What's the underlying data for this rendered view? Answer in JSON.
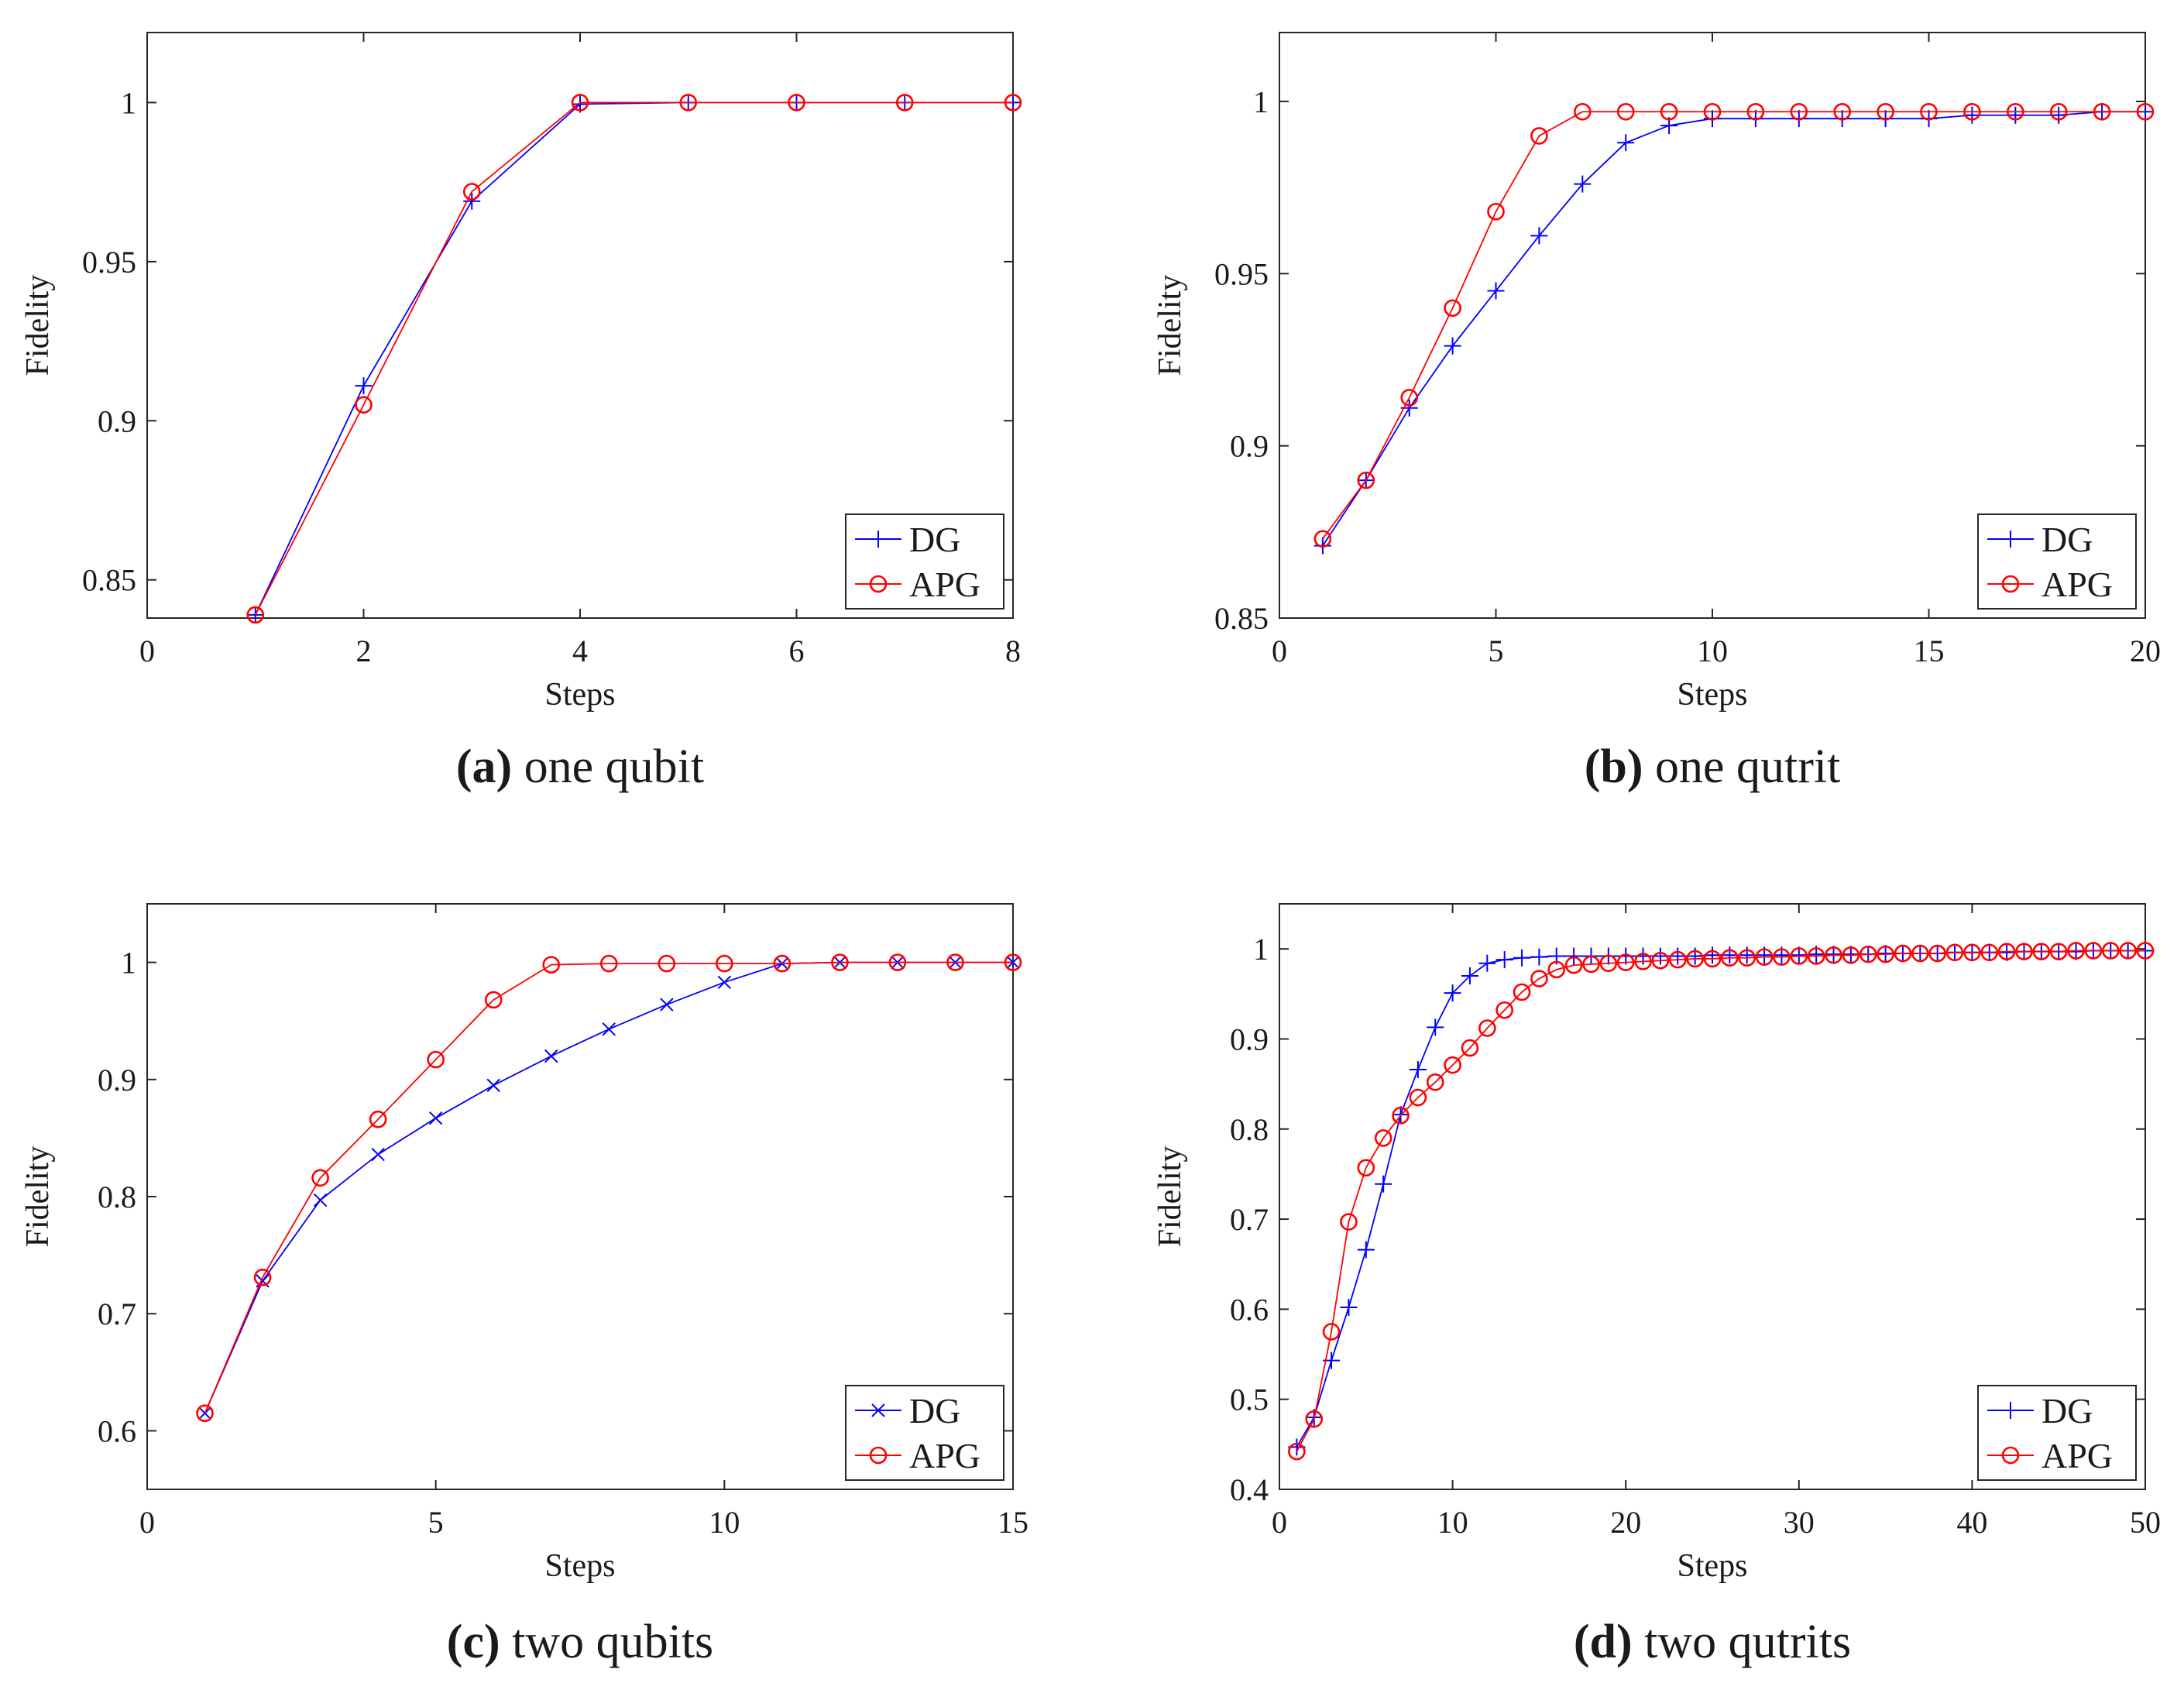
{
  "figure": {
    "colors": {
      "dg": "#0000ff",
      "apg": "#ff0000",
      "axis": "#262626"
    }
  },
  "chart_data": [
    {
      "id": "a",
      "type": "line",
      "caption_letter": "(a)",
      "caption_text": "one qubit",
      "xlabel": "Steps",
      "ylabel": "Fidelity",
      "xlim": [
        0,
        8
      ],
      "ylim": [
        0.838,
        1.022
      ],
      "xticks": [
        0,
        2,
        4,
        6,
        8
      ],
      "xtick_labels": [
        "0",
        "2",
        "4",
        "6",
        "8"
      ],
      "yticks": [
        0.85,
        0.9,
        0.95,
        1
      ],
      "ytick_labels": [
        "0.85",
        "0.9",
        "0.95",
        "1"
      ],
      "legend_position": "bottom-right",
      "series": [
        {
          "name": "DG",
          "marker": "plus",
          "color": "#0000ff",
          "x": [
            1,
            2,
            3,
            4,
            5,
            6,
            7,
            8
          ],
          "y": [
            0.839,
            0.911,
            0.969,
            0.9995,
            1.0,
            1.0,
            1.0,
            1.0
          ]
        },
        {
          "name": "APG",
          "marker": "circle",
          "color": "#ff0000",
          "x": [
            1,
            2,
            3,
            4,
            5,
            6,
            7,
            8
          ],
          "y": [
            0.839,
            0.905,
            0.972,
            1.0,
            1.0,
            1.0,
            1.0,
            1.0
          ]
        }
      ]
    },
    {
      "id": "b",
      "type": "line",
      "caption_letter": "(b)",
      "caption_text": "one qutrit",
      "xlabel": "Steps",
      "ylabel": "Fidelity",
      "xlim": [
        0,
        20
      ],
      "ylim": [
        0.85,
        1.02
      ],
      "xticks": [
        0,
        5,
        10,
        15,
        20
      ],
      "xtick_labels": [
        "0",
        "5",
        "10",
        "15",
        "20"
      ],
      "yticks": [
        0.85,
        0.9,
        0.95,
        1
      ],
      "ytick_labels": [
        "0.85",
        "0.9",
        "0.95",
        "1"
      ],
      "legend_position": "bottom-right",
      "series": [
        {
          "name": "DG",
          "marker": "plus",
          "color": "#0000ff",
          "x": [
            1,
            2,
            3,
            4,
            5,
            6,
            7,
            8,
            9,
            10,
            11,
            12,
            13,
            14,
            15,
            16,
            17,
            18,
            19,
            20
          ],
          "y": [
            0.871,
            0.89,
            0.911,
            0.929,
            0.945,
            0.961,
            0.976,
            0.988,
            0.993,
            0.995,
            0.995,
            0.995,
            0.995,
            0.995,
            0.995,
            0.996,
            0.996,
            0.996,
            0.997,
            0.997
          ]
        },
        {
          "name": "APG",
          "marker": "circle",
          "color": "#ff0000",
          "x": [
            1,
            2,
            3,
            4,
            5,
            6,
            7,
            8,
            9,
            10,
            11,
            12,
            13,
            14,
            15,
            16,
            17,
            18,
            19,
            20
          ],
          "y": [
            0.873,
            0.89,
            0.914,
            0.94,
            0.968,
            0.99,
            0.997,
            0.997,
            0.997,
            0.997,
            0.997,
            0.997,
            0.997,
            0.997,
            0.997,
            0.997,
            0.997,
            0.997,
            0.997,
            0.997
          ]
        }
      ]
    },
    {
      "id": "c",
      "type": "line",
      "caption_letter": "(c)",
      "caption_text": "two qubits",
      "xlabel": "Steps",
      "ylabel": "Fidelity",
      "xlim": [
        0,
        15
      ],
      "ylim": [
        0.55,
        1.05
      ],
      "xticks": [
        0,
        5,
        10,
        15
      ],
      "xtick_labels": [
        "0",
        "5",
        "10",
        "15"
      ],
      "yticks": [
        0.6,
        0.7,
        0.8,
        0.9,
        1
      ],
      "ytick_labels": [
        "0.6",
        "0.7",
        "0.8",
        "0.9",
        "1"
      ],
      "legend_position": "bottom-right",
      "series": [
        {
          "name": "DG",
          "marker": "x",
          "color": "#0000ff",
          "x": [
            1,
            2,
            3,
            4,
            5,
            6,
            7,
            8,
            9,
            10,
            11,
            12,
            13,
            14,
            15
          ],
          "y": [
            0.615,
            0.728,
            0.797,
            0.836,
            0.867,
            0.895,
            0.92,
            0.943,
            0.964,
            0.983,
            0.999,
            1.0,
            1.0,
            1.0,
            1.0
          ]
        },
        {
          "name": "APG",
          "marker": "circle",
          "color": "#ff0000",
          "x": [
            1,
            2,
            3,
            4,
            5,
            6,
            7,
            8,
            9,
            10,
            11,
            12,
            13,
            14,
            15
          ],
          "y": [
            0.615,
            0.731,
            0.816,
            0.866,
            0.917,
            0.968,
            0.998,
            0.999,
            0.999,
            0.999,
            0.999,
            1.0,
            1.0,
            1.0,
            1.0
          ]
        }
      ]
    },
    {
      "id": "d",
      "type": "line",
      "caption_letter": "(d)",
      "caption_text": "two qutrits",
      "xlabel": "Steps",
      "ylabel": "Fidelity",
      "xlim": [
        0,
        50
      ],
      "ylim": [
        0.4,
        1.05
      ],
      "xticks": [
        0,
        10,
        20,
        30,
        40,
        50
      ],
      "xtick_labels": [
        "0",
        "10",
        "20",
        "30",
        "40",
        "50"
      ],
      "yticks": [
        0.4,
        0.5,
        0.6,
        0.7,
        0.8,
        0.9,
        1
      ],
      "ytick_labels": [
        "0.4",
        "0.5",
        "0.6",
        "0.7",
        "0.8",
        "0.9",
        "1"
      ],
      "legend_position": "bottom-right",
      "series": [
        {
          "name": "DG",
          "marker": "plus",
          "color": "#0000ff",
          "x": [
            1,
            2,
            3,
            4,
            5,
            6,
            7,
            8,
            9,
            10,
            11,
            12,
            13,
            14,
            15,
            16,
            17,
            18,
            19,
            20,
            21,
            22,
            23,
            24,
            25,
            26,
            27,
            28,
            29,
            30,
            31,
            32,
            33,
            34,
            35,
            36,
            37,
            38,
            39,
            40,
            41,
            42,
            43,
            44,
            45,
            46,
            47,
            48,
            49,
            50
          ],
          "y": [
            0.447,
            0.48,
            0.543,
            0.602,
            0.666,
            0.739,
            0.816,
            0.866,
            0.913,
            0.951,
            0.97,
            0.984,
            0.988,
            0.99,
            0.991,
            0.992,
            0.992,
            0.992,
            0.992,
            0.992,
            0.992,
            0.992,
            0.992,
            0.992,
            0.993,
            0.993,
            0.993,
            0.993,
            0.993,
            0.993,
            0.994,
            0.994,
            0.994,
            0.994,
            0.995,
            0.995,
            0.995,
            0.995,
            0.996,
            0.996,
            0.996,
            0.996,
            0.997,
            0.997,
            0.997,
            0.997,
            0.998,
            0.998,
            0.998,
            0.998
          ]
        },
        {
          "name": "APG",
          "marker": "circle",
          "color": "#ff0000",
          "x": [
            1,
            2,
            3,
            4,
            5,
            6,
            7,
            8,
            9,
            10,
            11,
            12,
            13,
            14,
            15,
            16,
            17,
            18,
            19,
            20,
            21,
            22,
            23,
            24,
            25,
            26,
            27,
            28,
            29,
            30,
            31,
            32,
            33,
            34,
            35,
            36,
            37,
            38,
            39,
            40,
            41,
            42,
            43,
            44,
            45,
            46,
            47,
            48,
            49,
            50
          ],
          "y": [
            0.442,
            0.478,
            0.575,
            0.697,
            0.757,
            0.79,
            0.815,
            0.835,
            0.852,
            0.871,
            0.89,
            0.912,
            0.932,
            0.952,
            0.967,
            0.977,
            0.982,
            0.983,
            0.984,
            0.985,
            0.986,
            0.987,
            0.988,
            0.989,
            0.989,
            0.99,
            0.99,
            0.991,
            0.991,
            0.992,
            0.992,
            0.993,
            0.993,
            0.994,
            0.994,
            0.995,
            0.995,
            0.995,
            0.996,
            0.996,
            0.996,
            0.997,
            0.997,
            0.997,
            0.997,
            0.998,
            0.998,
            0.998,
            0.998,
            0.998
          ]
        }
      ]
    }
  ]
}
